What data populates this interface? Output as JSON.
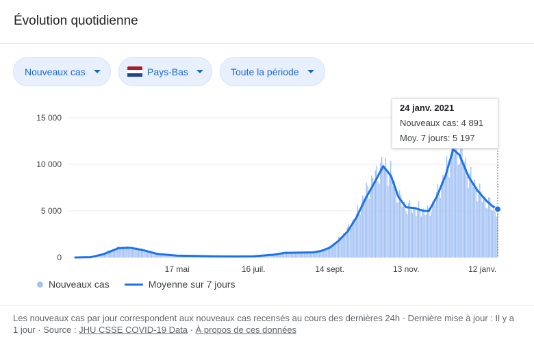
{
  "header": {
    "title": "Évolution quotidienne"
  },
  "filters": {
    "metric": "Nouveaux cas",
    "country": "Pays-Bas",
    "period": "Toute la période",
    "flag_colors": [
      "#ae1c28",
      "#ffffff",
      "#21468b"
    ]
  },
  "tooltip": {
    "date": "24 janv. 2021",
    "cases_label": "Nouveaux cas: 4 891",
    "avg_label": "Moy. 7 jours: 5 197"
  },
  "legend": {
    "bars": "Nouveaux cas",
    "line": "Moyenne sur 7 jours"
  },
  "footer": {
    "text": "Les nouveaux cas par jour correspondent aux nouveaux cas recensés au cours des dernières 24h · Dernière mise à jour : Il y a 1 jour · Source : ",
    "source_link": "JHU CSSE COVID-19 Data",
    "sep": " · ",
    "about_link": "À propos de ces données"
  },
  "colors": {
    "bars": "#a4c2f4",
    "line": "#1a73e8",
    "grid": "#e8eaed"
  },
  "chart_data": {
    "type": "bar",
    "title": "",
    "xlabel": "",
    "ylabel": "",
    "ylim": [
      0,
      15000
    ],
    "yticks": [
      {
        "value": 0,
        "label": "0"
      },
      {
        "value": 5000,
        "label": "5 000"
      },
      {
        "value": 10000,
        "label": "10 000"
      },
      {
        "value": 15000,
        "label": "15 000"
      }
    ],
    "x_start": "2020-02-27",
    "x_end": "2021-01-24",
    "xticks": [
      {
        "date": "2020-05-17",
        "label": "17 mai"
      },
      {
        "date": "2020-07-16",
        "label": "16 juil."
      },
      {
        "date": "2020-09-14",
        "label": "14 sept."
      },
      {
        "date": "2020-11-13",
        "label": "13 nov."
      },
      {
        "date": "2021-01-12",
        "label": "12 janv."
      }
    ],
    "series": [
      {
        "name": "Nouveaux cas",
        "kind": "bars",
        "points": [
          [
            "2020-03-01",
            0
          ],
          [
            "2020-03-10",
            50
          ],
          [
            "2020-03-20",
            450
          ],
          [
            "2020-04-01",
            1100
          ],
          [
            "2020-04-10",
            1100
          ],
          [
            "2020-04-20",
            850
          ],
          [
            "2020-05-01",
            400
          ],
          [
            "2020-05-17",
            200
          ],
          [
            "2020-06-01",
            180
          ],
          [
            "2020-06-15",
            130
          ],
          [
            "2020-07-01",
            110
          ],
          [
            "2020-07-16",
            120
          ],
          [
            "2020-08-01",
            350
          ],
          [
            "2020-08-10",
            600
          ],
          [
            "2020-08-20",
            500
          ],
          [
            "2020-09-01",
            550
          ],
          [
            "2020-09-07",
            700
          ],
          [
            "2020-09-14",
            1100
          ],
          [
            "2020-09-21",
            1900
          ],
          [
            "2020-09-28",
            2900
          ],
          [
            "2020-10-05",
            4500
          ],
          [
            "2020-10-12",
            6800
          ],
          [
            "2020-10-19",
            8500
          ],
          [
            "2020-10-26",
            10000
          ],
          [
            "2020-11-01",
            9000
          ],
          [
            "2020-11-07",
            6500
          ],
          [
            "2020-11-13",
            5400
          ],
          [
            "2020-11-20",
            5200
          ],
          [
            "2020-11-27",
            5000
          ],
          [
            "2020-12-01",
            4800
          ],
          [
            "2020-12-07",
            6500
          ],
          [
            "2020-12-14",
            9000
          ],
          [
            "2020-12-20",
            11800
          ],
          [
            "2020-12-25",
            11500
          ],
          [
            "2021-01-01",
            9000
          ],
          [
            "2021-01-08",
            7200
          ],
          [
            "2021-01-15",
            6000
          ],
          [
            "2021-01-20",
            5400
          ],
          [
            "2021-01-24",
            4891
          ]
        ]
      },
      {
        "name": "Moyenne sur 7 jours",
        "kind": "line",
        "points": [
          [
            "2020-02-27",
            0
          ],
          [
            "2020-03-10",
            30
          ],
          [
            "2020-03-20",
            350
          ],
          [
            "2020-04-01",
            1000
          ],
          [
            "2020-04-10",
            1050
          ],
          [
            "2020-04-20",
            800
          ],
          [
            "2020-05-01",
            400
          ],
          [
            "2020-05-17",
            200
          ],
          [
            "2020-06-01",
            170
          ],
          [
            "2020-06-15",
            130
          ],
          [
            "2020-07-01",
            110
          ],
          [
            "2020-07-16",
            130
          ],
          [
            "2020-08-01",
            300
          ],
          [
            "2020-08-10",
            500
          ],
          [
            "2020-08-20",
            520
          ],
          [
            "2020-09-01",
            550
          ],
          [
            "2020-09-07",
            700
          ],
          [
            "2020-09-14",
            1050
          ],
          [
            "2020-09-21",
            1800
          ],
          [
            "2020-09-28",
            2800
          ],
          [
            "2020-10-05",
            4300
          ],
          [
            "2020-10-12",
            6300
          ],
          [
            "2020-10-19",
            8000
          ],
          [
            "2020-10-26",
            9800
          ],
          [
            "2020-11-01",
            8800
          ],
          [
            "2020-11-07",
            6500
          ],
          [
            "2020-11-13",
            5400
          ],
          [
            "2020-11-20",
            5300
          ],
          [
            "2020-11-27",
            5000
          ],
          [
            "2020-12-01",
            5000
          ],
          [
            "2020-12-07",
            6500
          ],
          [
            "2020-12-14",
            8800
          ],
          [
            "2020-12-20",
            11600
          ],
          [
            "2020-12-25",
            11000
          ],
          [
            "2021-01-01",
            8700
          ],
          [
            "2021-01-08",
            7200
          ],
          [
            "2021-01-15",
            6100
          ],
          [
            "2021-01-20",
            5500
          ],
          [
            "2021-01-24",
            5197
          ]
        ]
      }
    ]
  }
}
